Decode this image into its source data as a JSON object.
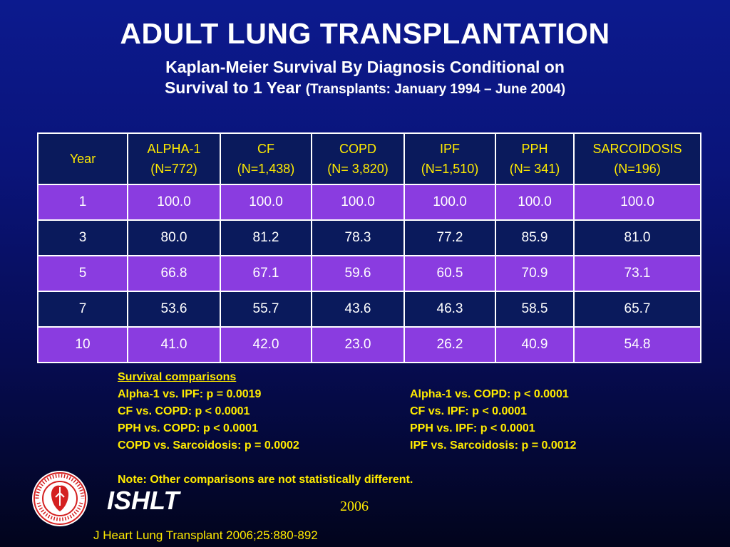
{
  "title": "ADULT LUNG TRANSPLANTATION",
  "subtitle": {
    "line1": "Kaplan-Meier Survival By Diagnosis Conditional on",
    "line2_main": "Survival to 1 Year",
    "line2_small": "(Transplants: January 1994 – June 2004)"
  },
  "table": {
    "headers": [
      {
        "l1": "Year",
        "l2": ""
      },
      {
        "l1": "ALPHA-1",
        "l2": "(N=772)"
      },
      {
        "l1": "CF",
        "l2": "(N=1,438)"
      },
      {
        "l1": "COPD",
        "l2": "(N= 3,820)"
      },
      {
        "l1": "IPF",
        "l2": "(N=1,510)"
      },
      {
        "l1": "PPH",
        "l2": "(N= 341)"
      },
      {
        "l1": "SARCOIDOSIS",
        "l2": "(N=196)"
      }
    ],
    "rows": [
      [
        "1",
        "100.0",
        "100.0",
        "100.0",
        "100.0",
        "100.0",
        "100.0"
      ],
      [
        "3",
        "80.0",
        "81.2",
        "78.3",
        "77.2",
        "85.9",
        "81.0"
      ],
      [
        "5",
        "66.8",
        "67.1",
        "59.6",
        "60.5",
        "70.9",
        "73.1"
      ],
      [
        "7",
        "53.6",
        "55.7",
        "43.6",
        "46.3",
        "58.5",
        "65.7"
      ],
      [
        "10",
        "41.0",
        "42.0",
        "23.0",
        "26.2",
        "40.9",
        "54.8"
      ]
    ]
  },
  "comparisons": {
    "heading": "Survival comparisons",
    "left": [
      "Alpha-1 vs. IPF: p = 0.0019",
      "CF vs. COPD: p < 0.0001",
      "PPH vs. COPD: p < 0.0001",
      "COPD vs. Sarcoidosis: p = 0.0002"
    ],
    "right": [
      "Alpha-1 vs. COPD: p < 0.0001",
      "CF vs. IPF: p < 0.0001",
      "PPH vs. IPF: p < 0.0001",
      "IPF vs. Sarcoidosis: p = 0.0012"
    ],
    "note": "Note: Other comparisons are not statistically different."
  },
  "footer": {
    "org": "ISHLT",
    "year": "2006",
    "citation": "J Heart Lung Transplant 2006;25:880-892",
    "logo_icon": "ishlt-seal-icon"
  },
  "colors": {
    "accent_yellow": "#ffeb00",
    "row_purple": "#8a3ce0",
    "row_navy": "#0a1a5c",
    "background_blue": "#0c1a8e"
  }
}
